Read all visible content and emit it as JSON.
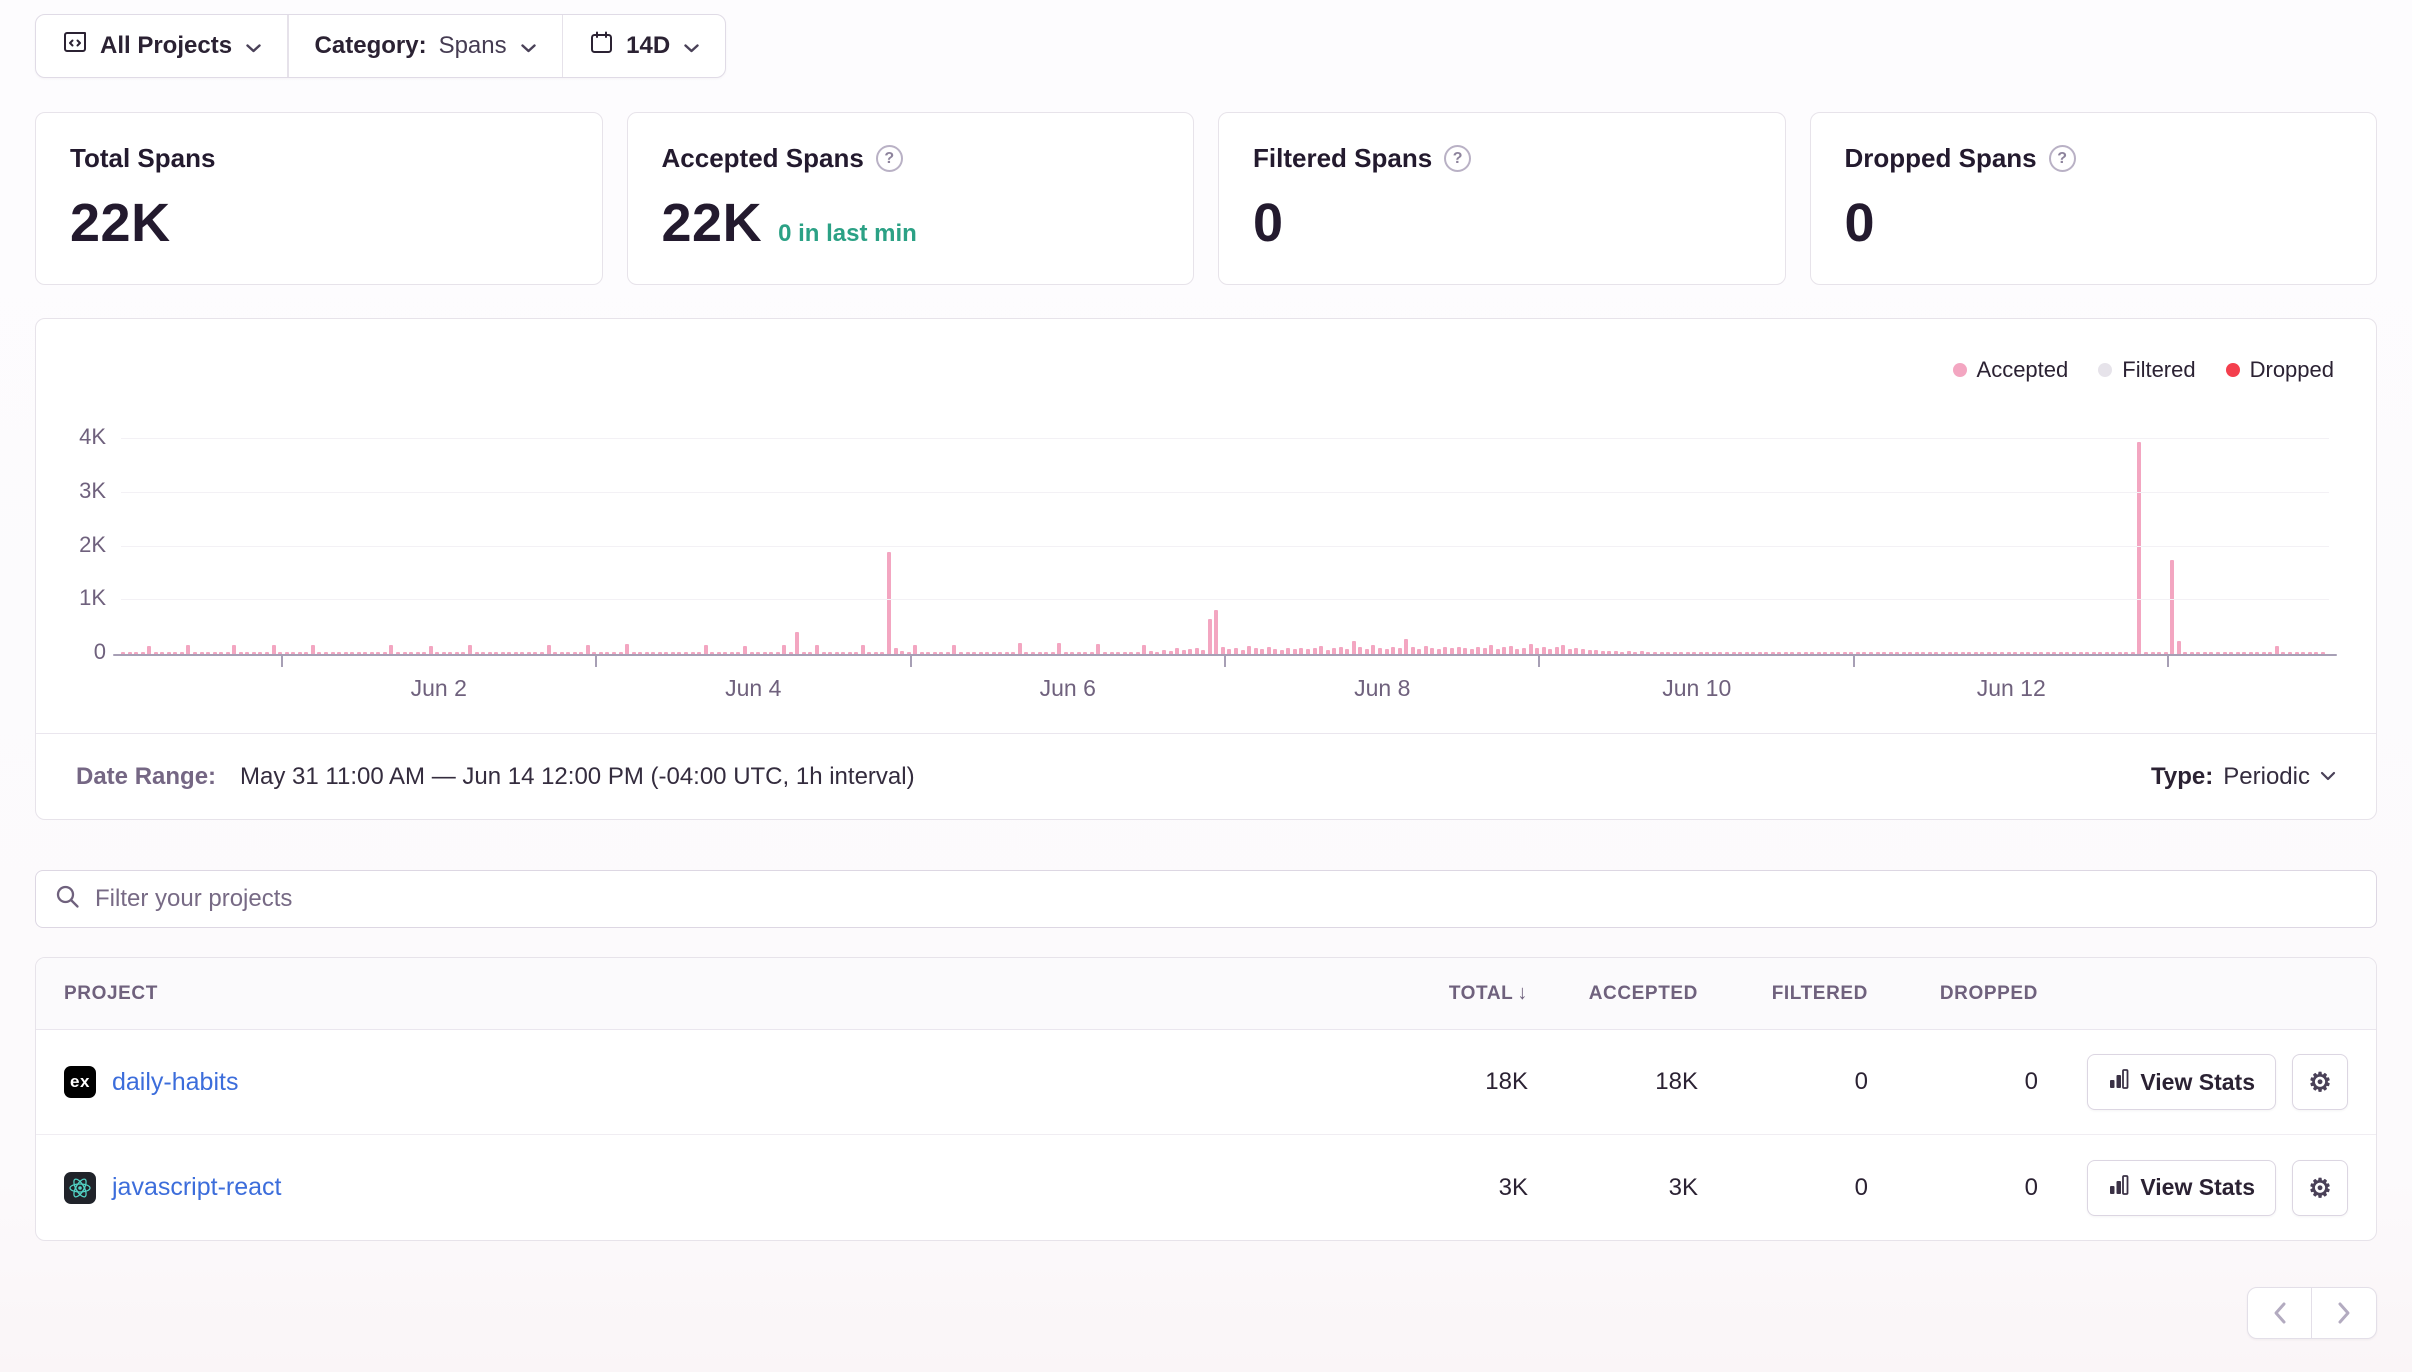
{
  "filter_bar": {
    "projects_label": "All Projects",
    "category_label": "Category:",
    "category_value": "Spans",
    "period_value": "14D"
  },
  "cards": [
    {
      "title": "Total Spans",
      "value": "22K",
      "note": ""
    },
    {
      "title": "Accepted Spans",
      "value": "22K",
      "note": "0 in last min"
    },
    {
      "title": "Filtered Spans",
      "value": "0",
      "note": ""
    },
    {
      "title": "Dropped Spans",
      "value": "0",
      "note": ""
    }
  ],
  "chart": {
    "legend": [
      {
        "label": "Accepted",
        "color": "#f3a6c1"
      },
      {
        "label": "Filtered",
        "color": "#e6e3ea"
      },
      {
        "label": "Dropped",
        "color": "#f43f4d"
      }
    ]
  },
  "chart_data": {
    "type": "bar",
    "title": "Spans over time",
    "interval": "1h",
    "x_start": "May 31 11:00 AM",
    "x_end": "Jun 14 12:00 PM",
    "ylim": [
      0,
      4400
    ],
    "y_tick_values": [
      0,
      1000,
      2000,
      3000,
      4000
    ],
    "y_tick_labels": [
      "0",
      "1K",
      "2K",
      "3K",
      "4K"
    ],
    "x_ticks": [
      {
        "index": 48,
        "label": "Jun 2"
      },
      {
        "index": 96,
        "label": "Jun 4"
      },
      {
        "index": 144,
        "label": "Jun 6"
      },
      {
        "index": 192,
        "label": "Jun 8"
      },
      {
        "index": 240,
        "label": "Jun 10"
      },
      {
        "index": 288,
        "label": "Jun 12"
      }
    ],
    "tick_mark_indices": [
      24,
      72,
      120,
      168,
      216,
      264,
      312
    ],
    "series": [
      {
        "name": "Accepted",
        "color": "#f3a6c1",
        "values": [
          30,
          22,
          26,
          34,
          150,
          28,
          24,
          32,
          26,
          20,
          165,
          30,
          24,
          28,
          22,
          30,
          26,
          175,
          24,
          30,
          22,
          28,
          34,
          160,
          26,
          22,
          30,
          24,
          28,
          170,
          24,
          30,
          22,
          26,
          32,
          24,
          28,
          24,
          30,
          22,
          28,
          165,
          26,
          32,
          22,
          28,
          24,
          155,
          30,
          26,
          22,
          34,
          28,
          175,
          22,
          26,
          30,
          24,
          28,
          22,
          32,
          30,
          24,
          28,
          22,
          170,
          26,
          30,
          34,
          22,
          28,
          160,
          24,
          30,
          26,
          22,
          32,
          180,
          28,
          22,
          26,
          30,
          24,
          34,
          22,
          26,
          30,
          22,
          28,
          160,
          24,
          32,
          26,
          22,
          30,
          150,
          28,
          24,
          34,
          22,
          26,
          170,
          30,
          420,
          28,
          24,
          160,
          26,
          22,
          28,
          22,
          30,
          26,
          165,
          24,
          30,
          22,
          1900,
          120,
          60,
          28,
          175,
          30,
          24,
          22,
          28,
          26,
          160,
          22,
          30,
          24,
          26,
          32,
          24,
          28,
          22,
          30,
          200,
          26,
          22,
          34,
          28,
          24,
          210,
          30,
          22,
          26,
          28,
          32,
          190,
          24,
          28,
          22,
          30,
          26,
          24,
          160,
          60,
          45,
          80,
          55,
          120,
          70,
          90,
          110,
          75,
          650,
          820,
          140,
          95,
          120,
          80,
          150,
          110,
          90,
          130,
          100,
          80,
          120,
          95,
          110,
          90,
          120,
          150,
          80,
          110,
          140,
          95,
          250,
          130,
          100,
          160,
          120,
          90,
          140,
          110,
          280,
          130,
          95,
          150,
          120,
          100,
          130,
          110,
          140,
          110,
          90,
          140,
          120,
          160,
          100,
          130,
          150,
          95,
          120,
          180,
          110,
          140,
          90,
          130,
          160,
          100,
          120,
          90,
          80,
          70,
          60,
          55,
          50,
          45,
          60,
          40,
          55,
          35,
          45,
          30,
          15,
          12,
          14,
          12,
          15,
          12,
          14,
          12,
          15,
          12,
          14,
          12,
          15,
          12,
          14,
          12,
          15,
          12,
          14,
          12,
          15,
          12,
          14,
          12,
          15,
          12,
          14,
          12,
          15,
          12,
          14,
          12,
          15,
          12,
          14,
          12,
          15,
          12,
          14,
          12,
          15,
          14,
          12,
          15,
          12,
          14,
          12,
          15,
          12,
          14,
          12,
          15,
          12,
          14,
          12,
          15,
          12,
          14,
          12,
          15,
          12,
          14,
          12,
          15,
          12,
          12,
          14,
          12,
          15,
          12,
          14,
          12,
          3950,
          14,
          12,
          15,
          12,
          1750,
          250,
          12,
          14,
          12,
          15,
          12,
          14,
          12,
          15,
          12,
          14,
          24,
          28,
          22,
          30,
          150,
          26,
          22,
          28,
          24,
          30,
          22,
          26
        ]
      },
      {
        "name": "Filtered",
        "color": "#e6e3ea",
        "constant_value": 0
      },
      {
        "name": "Dropped",
        "color": "#f43f4d",
        "constant_value": 0
      }
    ]
  },
  "chart_footer": {
    "date_range_label": "Date Range:",
    "date_range_value": "May 31 11:00 AM — Jun 14 12:00 PM (-04:00 UTC, 1h interval)",
    "type_label": "Type:",
    "type_value": "Periodic"
  },
  "search": {
    "placeholder": "Filter your projects"
  },
  "table": {
    "columns": [
      "PROJECT",
      "TOTAL",
      "ACCEPTED",
      "FILTERED",
      "DROPPED"
    ],
    "rows": [
      {
        "project": "daily-habits",
        "platform_icon": "expo-icon",
        "total": "18K",
        "accepted": "18K",
        "filtered": "0",
        "dropped": "0",
        "action_label": "View Stats"
      },
      {
        "project": "javascript-react",
        "platform_icon": "react-icon",
        "total": "3K",
        "accepted": "3K",
        "filtered": "0",
        "dropped": "0",
        "action_label": "View Stats"
      }
    ]
  },
  "colors": {
    "accent_pink": "#f3a6c1",
    "dropped_red": "#f43f4d",
    "filtered_gray": "#e6e3ea",
    "link_blue": "#3c6ddb",
    "success_teal": "#2ba185",
    "text_primary": "#2b2233",
    "text_secondary": "#6f617d"
  }
}
